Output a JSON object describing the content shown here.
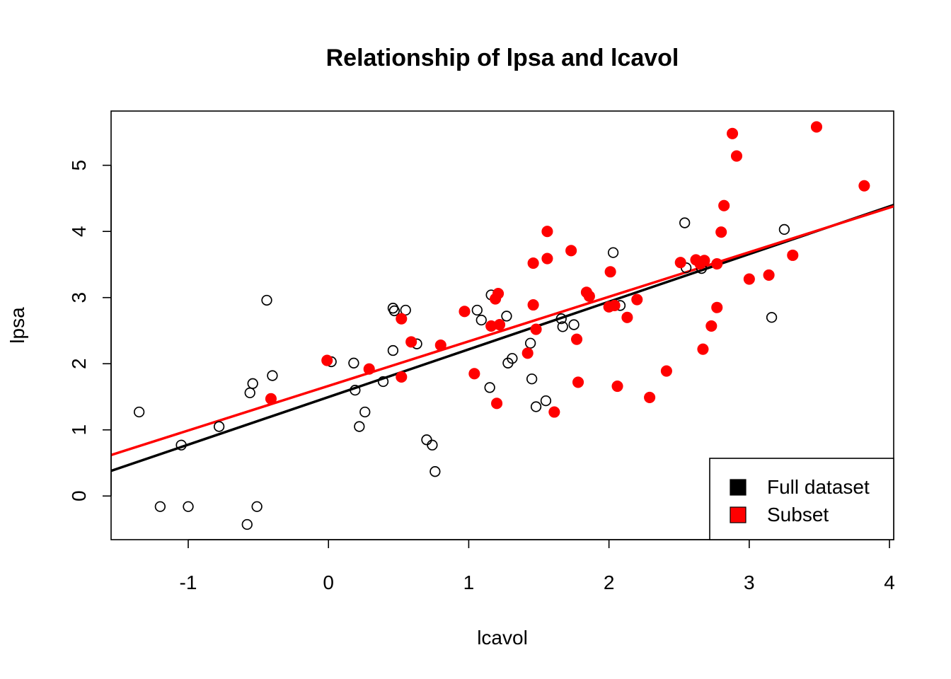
{
  "chart_data": {
    "type": "scatter",
    "title": "Relationship of lpsa and lcavol",
    "xlabel": "lcavol",
    "ylabel": "lpsa",
    "xlim": [
      -1.55,
      4.03
    ],
    "ylim": [
      -0.66,
      5.82
    ],
    "xticks": [
      -1,
      0,
      1,
      2,
      3,
      4
    ],
    "yticks": [
      0,
      1,
      2,
      3,
      4,
      5
    ],
    "grid": false,
    "legend_position": "bottom-right",
    "series": [
      {
        "name": "Full dataset",
        "color": "#000000",
        "marker": "open-circle",
        "points": [
          [
            -1.35,
            1.27
          ],
          [
            -1.2,
            -0.16
          ],
          [
            -1.05,
            0.77
          ],
          [
            -1.0,
            -0.16
          ],
          [
            -0.78,
            1.05
          ],
          [
            -0.58,
            -0.43
          ],
          [
            -0.56,
            1.56
          ],
          [
            -0.54,
            1.7
          ],
          [
            -0.51,
            -0.16
          ],
          [
            -0.44,
            2.96
          ],
          [
            -0.4,
            1.82
          ],
          [
            0.02,
            2.03
          ],
          [
            0.18,
            2.01
          ],
          [
            0.19,
            1.6
          ],
          [
            0.22,
            1.05
          ],
          [
            0.26,
            1.27
          ],
          [
            0.39,
            1.73
          ],
          [
            0.46,
            2.84
          ],
          [
            0.47,
            2.8
          ],
          [
            0.46,
            2.2
          ],
          [
            0.55,
            2.81
          ],
          [
            0.63,
            2.3
          ],
          [
            0.7,
            0.85
          ],
          [
            0.74,
            0.77
          ],
          [
            0.76,
            0.37
          ],
          [
            1.06,
            2.81
          ],
          [
            1.09,
            2.66
          ],
          [
            1.15,
            1.64
          ],
          [
            1.16,
            3.04
          ],
          [
            1.27,
            2.72
          ],
          [
            1.28,
            2.01
          ],
          [
            1.31,
            2.08
          ],
          [
            1.44,
            2.31
          ],
          [
            1.45,
            1.77
          ],
          [
            1.48,
            1.35
          ],
          [
            1.55,
            1.44
          ],
          [
            1.66,
            2.68
          ],
          [
            1.67,
            2.56
          ],
          [
            1.75,
            2.59
          ],
          [
            2.03,
            3.68
          ],
          [
            2.08,
            2.88
          ],
          [
            2.54,
            4.13
          ],
          [
            2.55,
            3.45
          ],
          [
            2.66,
            3.44
          ],
          [
            3.16,
            2.7
          ],
          [
            3.25,
            4.03
          ]
        ]
      },
      {
        "name": "Subset",
        "color": "#ff0000",
        "marker": "filled-circle",
        "points": [
          [
            -0.41,
            1.47
          ],
          [
            -0.01,
            2.05
          ],
          [
            0.29,
            1.92
          ],
          [
            0.52,
            2.68
          ],
          [
            0.52,
            1.8
          ],
          [
            0.59,
            2.33
          ],
          [
            0.8,
            2.28
          ],
          [
            0.97,
            2.79
          ],
          [
            1.04,
            1.85
          ],
          [
            1.16,
            2.57
          ],
          [
            1.19,
            2.98
          ],
          [
            1.21,
            3.06
          ],
          [
            1.2,
            1.4
          ],
          [
            1.22,
            2.59
          ],
          [
            1.42,
            2.16
          ],
          [
            1.46,
            3.52
          ],
          [
            1.46,
            2.89
          ],
          [
            1.48,
            2.52
          ],
          [
            1.56,
            4.0
          ],
          [
            1.56,
            3.59
          ],
          [
            1.61,
            1.27
          ],
          [
            1.73,
            3.71
          ],
          [
            1.77,
            2.37
          ],
          [
            1.78,
            1.72
          ],
          [
            1.84,
            3.08
          ],
          [
            1.86,
            3.02
          ],
          [
            2.0,
            2.86
          ],
          [
            2.01,
            3.39
          ],
          [
            2.04,
            2.88
          ],
          [
            2.06,
            1.66
          ],
          [
            2.13,
            2.7
          ],
          [
            2.2,
            2.97
          ],
          [
            2.29,
            1.49
          ],
          [
            2.41,
            1.89
          ],
          [
            2.51,
            3.53
          ],
          [
            2.62,
            3.57
          ],
          [
            2.65,
            3.51
          ],
          [
            2.67,
            2.22
          ],
          [
            2.68,
            3.56
          ],
          [
            2.73,
            2.57
          ],
          [
            2.77,
            3.51
          ],
          [
            2.77,
            2.85
          ],
          [
            2.8,
            3.99
          ],
          [
            2.82,
            4.39
          ],
          [
            2.88,
            5.48
          ],
          [
            2.91,
            5.14
          ],
          [
            3.0,
            3.28
          ],
          [
            3.14,
            3.34
          ],
          [
            3.31,
            3.64
          ],
          [
            3.48,
            5.58
          ],
          [
            3.82,
            4.69
          ]
        ]
      }
    ],
    "fit_lines": [
      {
        "name": "Full dataset",
        "color": "#000000",
        "from": [
          -1.55,
          0.38
        ],
        "to": [
          4.03,
          4.4
        ]
      },
      {
        "name": "Subset",
        "color": "#ff0000",
        "from": [
          -1.55,
          0.62
        ],
        "to": [
          4.03,
          4.38
        ]
      }
    ]
  }
}
